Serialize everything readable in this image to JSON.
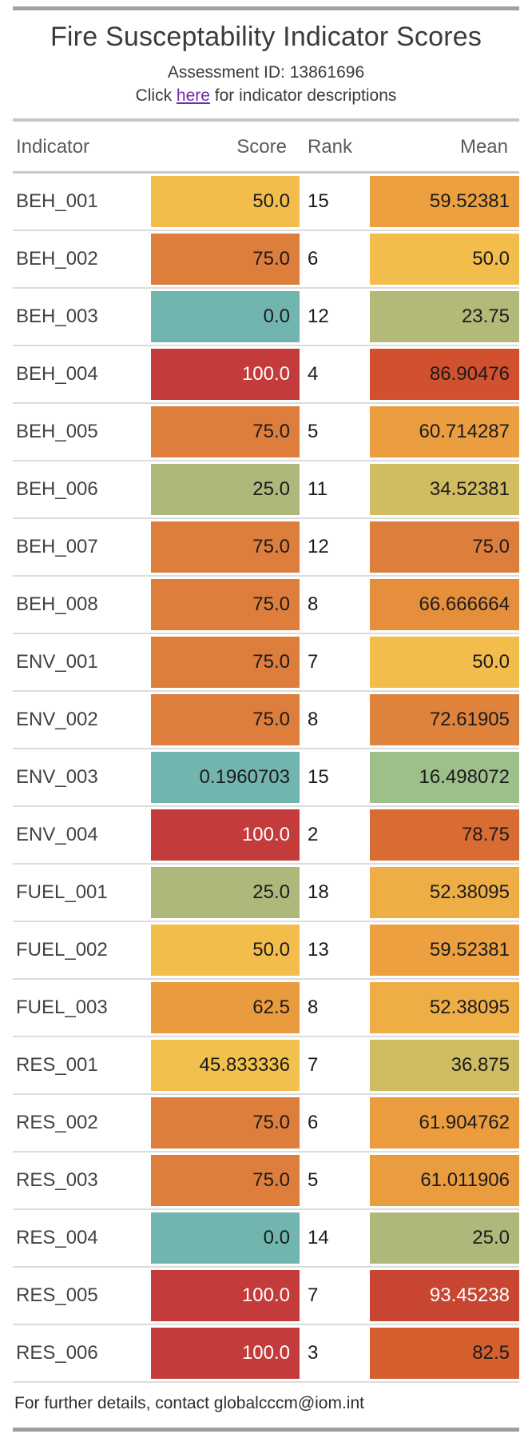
{
  "page": {
    "title": "Fire Susceptability Indicator Scores",
    "assessment_id": "Assessment ID: 13861696",
    "link_pre": "Click ",
    "link_text": "here",
    "link_post": " for indicator descriptions",
    "footer": "For further details, contact globalcccm@iom.int"
  },
  "colors": {
    "link": "#7229b2",
    "top_bar": "#a3a3a3",
    "bottom_bar": "#9e9e9e",
    "row_divider": "#dcdcdc",
    "section_divider": "#c7c7c7"
  },
  "table": {
    "headers": [
      "Indicator",
      "Score",
      "Rank",
      "Mean"
    ],
    "rows": [
      {
        "indicator": "BEH_001",
        "score": "50.0",
        "rank": "15",
        "mean": "59.52381",
        "score_bg": "#f3bd4b",
        "score_fg": "#1b1b1d",
        "mean_bg": "#eca03f",
        "mean_fg": "#1b1b1d"
      },
      {
        "indicator": "BEH_002",
        "score": "75.0",
        "rank": "6",
        "mean": "50.0",
        "score_bg": "#dd7e3d",
        "score_fg": "#1b1b1d",
        "mean_bg": "#f3bd4b",
        "mean_fg": "#1b1b1d"
      },
      {
        "indicator": "BEH_003",
        "score": "0.0",
        "rank": "12",
        "mean": "23.75",
        "score_bg": "#72b5af",
        "score_fg": "#1b1b1d",
        "mean_bg": "#b2b979",
        "mean_fg": "#1b1b1d"
      },
      {
        "indicator": "BEH_004",
        "score": "100.0",
        "rank": "4",
        "mean": "86.90476",
        "score_bg": "#c33b3b",
        "score_fg": "#ffffff",
        "mean_bg": "#d1502e",
        "mean_fg": "#1b1b1d"
      },
      {
        "indicator": "BEH_005",
        "score": "75.0",
        "rank": "5",
        "mean": "60.714287",
        "score_bg": "#dd7e3d",
        "score_fg": "#1b1b1d",
        "mean_bg": "#eb9e3f",
        "mean_fg": "#1b1b1d"
      },
      {
        "indicator": "BEH_006",
        "score": "25.0",
        "rank": "11",
        "mean": "34.52381",
        "score_bg": "#afb87a",
        "score_fg": "#1b1b1d",
        "mean_bg": "#d2bc62",
        "mean_fg": "#1b1b1d"
      },
      {
        "indicator": "BEH_007",
        "score": "75.0",
        "rank": "12",
        "mean": "75.0",
        "score_bg": "#dd7e3d",
        "score_fg": "#1b1b1d",
        "mean_bg": "#dd7e3d",
        "mean_fg": "#1b1b1d"
      },
      {
        "indicator": "BEH_008",
        "score": "75.0",
        "rank": "8",
        "mean": "66.666664",
        "score_bg": "#dd7e3d",
        "score_fg": "#1b1b1d",
        "mean_bg": "#e58e3b",
        "mean_fg": "#1b1b1d"
      },
      {
        "indicator": "ENV_001",
        "score": "75.0",
        "rank": "7",
        "mean": "50.0",
        "score_bg": "#dd7e3d",
        "score_fg": "#1b1b1d",
        "mean_bg": "#f3bd4b",
        "mean_fg": "#1b1b1d"
      },
      {
        "indicator": "ENV_002",
        "score": "75.0",
        "rank": "8",
        "mean": "72.61905",
        "score_bg": "#dd7e3d",
        "score_fg": "#1b1b1d",
        "mean_bg": "#de823c",
        "mean_fg": "#1b1b1d"
      },
      {
        "indicator": "ENV_003",
        "score": "0.1960703",
        "rank": "15",
        "mean": "16.498072",
        "score_bg": "#72b5af",
        "score_fg": "#1b1b1d",
        "mean_bg": "#9dc08a",
        "mean_fg": "#1b1b1d"
      },
      {
        "indicator": "ENV_004",
        "score": "100.0",
        "rank": "2",
        "mean": "78.75",
        "score_bg": "#c33b3b",
        "score_fg": "#ffffff",
        "mean_bg": "#d86c33",
        "mean_fg": "#1b1b1d"
      },
      {
        "indicator": "FUEL_001",
        "score": "25.0",
        "rank": "18",
        "mean": "52.38095",
        "score_bg": "#afb87a",
        "score_fg": "#1b1b1d",
        "mean_bg": "#efae45",
        "mean_fg": "#1b1b1d"
      },
      {
        "indicator": "FUEL_002",
        "score": "50.0",
        "rank": "13",
        "mean": "59.52381",
        "score_bg": "#f3bd4b",
        "score_fg": "#1b1b1d",
        "mean_bg": "#eca03f",
        "mean_fg": "#1b1b1d"
      },
      {
        "indicator": "FUEL_003",
        "score": "62.5",
        "rank": "8",
        "mean": "52.38095",
        "score_bg": "#e99b3e",
        "score_fg": "#1b1b1d",
        "mean_bg": "#efae45",
        "mean_fg": "#1b1b1d"
      },
      {
        "indicator": "RES_001",
        "score": "45.833336",
        "rank": "7",
        "mean": "36.875",
        "score_bg": "#f2c04d",
        "score_fg": "#1b1b1d",
        "mean_bg": "#cfbb61",
        "mean_fg": "#1b1b1d"
      },
      {
        "indicator": "RES_002",
        "score": "75.0",
        "rank": "6",
        "mean": "61.904762",
        "score_bg": "#dd7e3d",
        "score_fg": "#1b1b1d",
        "mean_bg": "#ea9c3f",
        "mean_fg": "#1b1b1d"
      },
      {
        "indicator": "RES_003",
        "score": "75.0",
        "rank": "5",
        "mean": "61.011906",
        "score_bg": "#dd7e3d",
        "score_fg": "#1b1b1d",
        "mean_bg": "#ea9d3f",
        "mean_fg": "#1b1b1d"
      },
      {
        "indicator": "RES_004",
        "score": "0.0",
        "rank": "14",
        "mean": "25.0",
        "score_bg": "#72b5af",
        "score_fg": "#1b1b1d",
        "mean_bg": "#afb87a",
        "mean_fg": "#1b1b1d"
      },
      {
        "indicator": "RES_005",
        "score": "100.0",
        "rank": "7",
        "mean": "93.45238",
        "score_bg": "#c33b3b",
        "score_fg": "#ffffff",
        "mean_bg": "#c84531",
        "mean_fg": "#ffffff"
      },
      {
        "indicator": "RES_006",
        "score": "100.0",
        "rank": "3",
        "mean": "82.5",
        "score_bg": "#c33b3b",
        "score_fg": "#ffffff",
        "mean_bg": "#d55f2f",
        "mean_fg": "#1b1b1d"
      }
    ]
  }
}
